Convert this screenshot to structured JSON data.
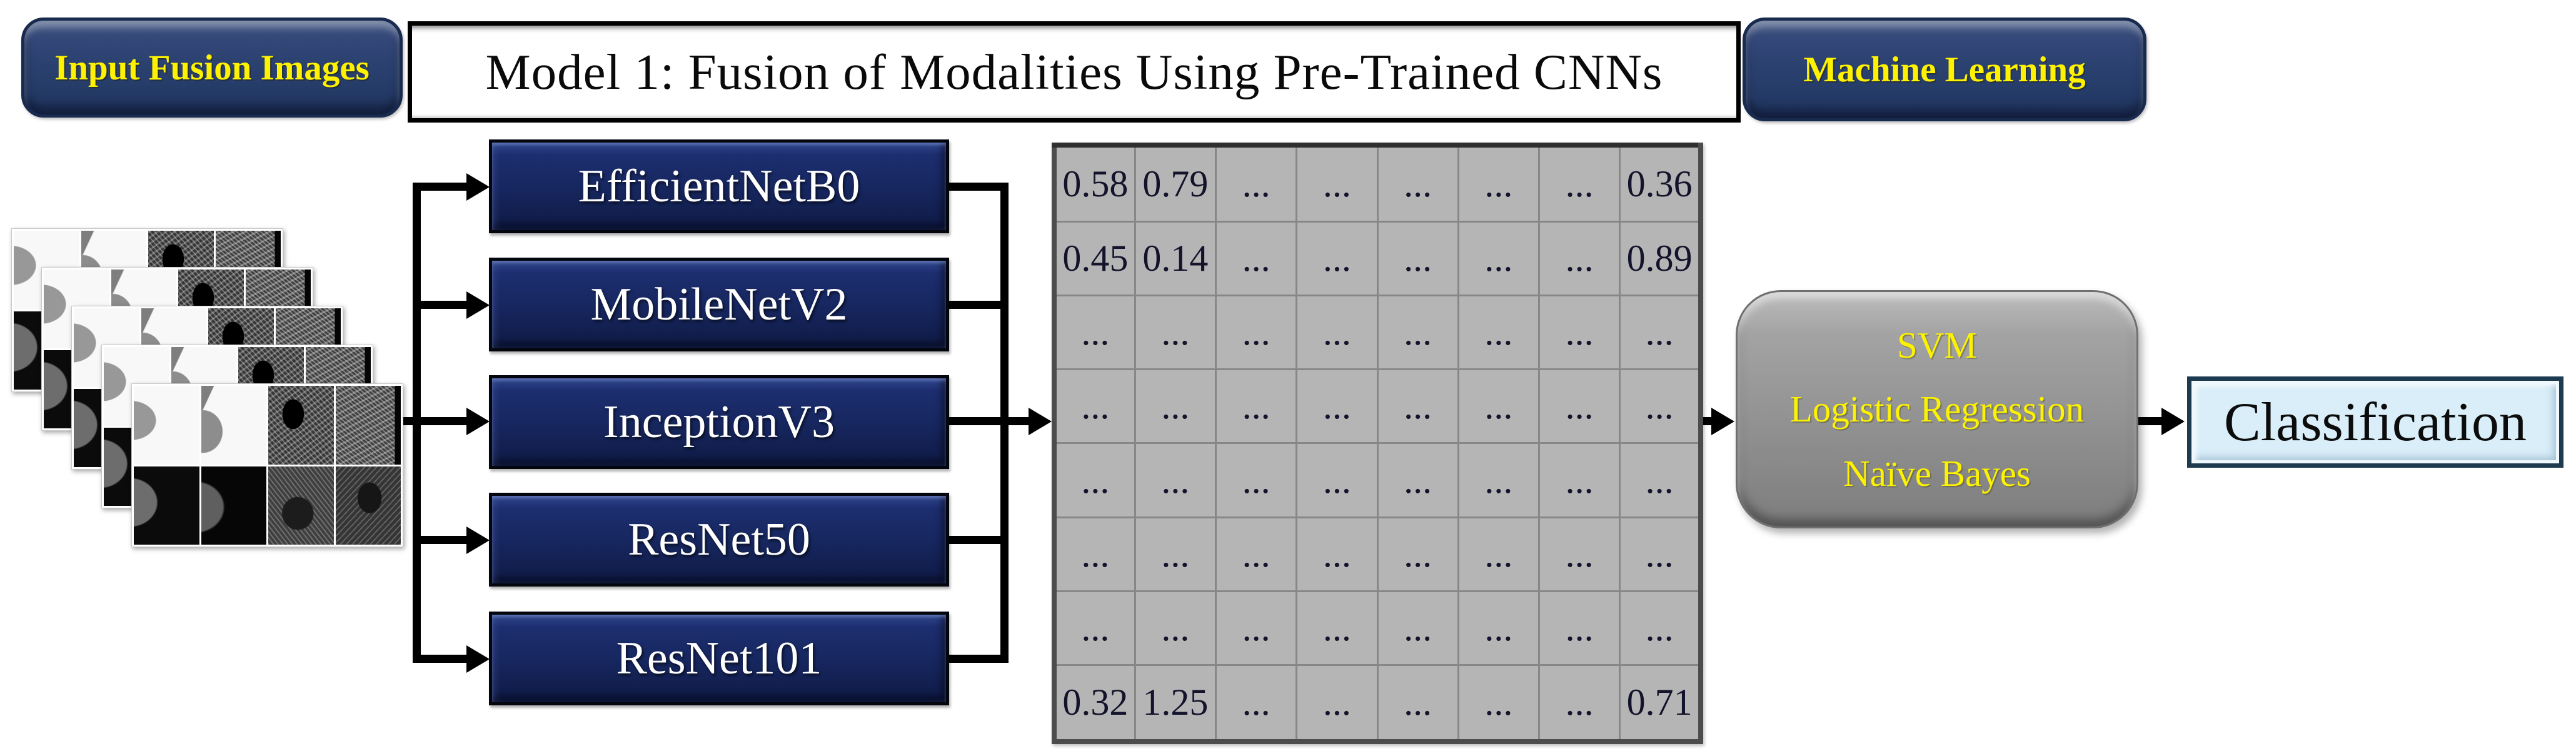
{
  "header": {
    "input_badge_label": "Input Fusion Images",
    "title": "Model 1: Fusion of Modalities Using Pre-Trained CNNs",
    "ml_badge_label": "Machine Learning"
  },
  "input_stack": {
    "layers": 5
  },
  "cnn_models": [
    "EfficientNetB0",
    "MobileNetV2",
    "InceptionV3",
    "ResNet50",
    "ResNet101"
  ],
  "feature_matrix": {
    "rows": [
      [
        "0.58",
        "0.79",
        "...",
        "...",
        "...",
        "...",
        "...",
        "0.36"
      ],
      [
        "0.45",
        "0.14",
        "...",
        "...",
        "...",
        "...",
        "...",
        "0.89"
      ],
      [
        "...",
        "...",
        "...",
        "...",
        "...",
        "...",
        "...",
        "..."
      ],
      [
        "...",
        "...",
        "...",
        "...",
        "...",
        "...",
        "...",
        "..."
      ],
      [
        "...",
        "...",
        "...",
        "...",
        "...",
        "...",
        "...",
        "..."
      ],
      [
        "...",
        "...",
        "...",
        "...",
        "...",
        "...",
        "...",
        "..."
      ],
      [
        "...",
        "...",
        "...",
        "...",
        "...",
        "...",
        "...",
        "..."
      ],
      [
        "0.32",
        "1.25",
        "...",
        "...",
        "...",
        "...",
        "...",
        "0.71"
      ]
    ]
  },
  "ml_box": {
    "lines": [
      "SVM",
      "Logistic Regression",
      "Naïve Bayes"
    ]
  },
  "output_box": {
    "label": "Classification"
  },
  "colors": {
    "badge_navy": "#2b4170",
    "cnn_navy": "#172760",
    "matrix_gray": "#b5b5b5",
    "ml_gray": "#929292",
    "classification_blue": "#d9eef9",
    "accent_yellow": "#fdf300",
    "line_black": "#000000"
  }
}
